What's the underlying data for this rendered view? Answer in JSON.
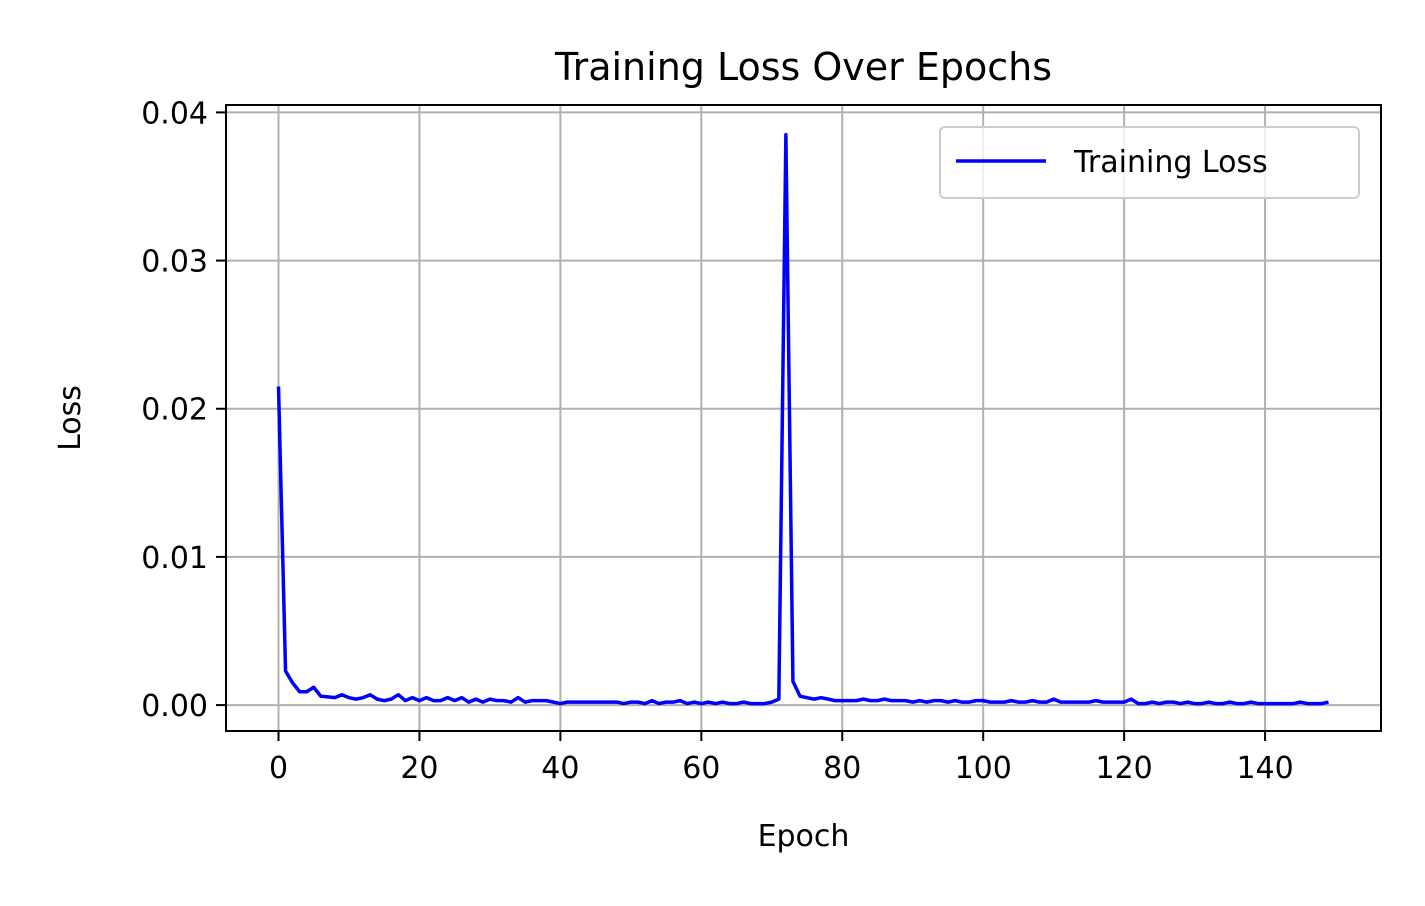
{
  "chart_data": {
    "type": "line",
    "title": "Training Loss Over Epochs",
    "xlabel": "Epoch",
    "ylabel": "Loss",
    "xlim": [
      -7.45,
      156.45
    ],
    "ylim": [
      -0.00175,
      0.0405
    ],
    "xticks": [
      0,
      20,
      40,
      60,
      80,
      100,
      120,
      140
    ],
    "xtick_labels": [
      "0",
      "20",
      "40",
      "60",
      "80",
      "100",
      "120",
      "140"
    ],
    "yticks": [
      0.0,
      0.01,
      0.02,
      0.03,
      0.04
    ],
    "ytick_labels": [
      "0.00",
      "0.01",
      "0.02",
      "0.03",
      "0.04"
    ],
    "grid": true,
    "legend_position": "upper right",
    "series": [
      {
        "name": "Training Loss",
        "color": "#0000ff",
        "x": [
          0,
          1,
          2,
          3,
          4,
          5,
          6,
          7,
          8,
          9,
          10,
          11,
          12,
          13,
          14,
          15,
          16,
          17,
          18,
          19,
          20,
          21,
          22,
          23,
          24,
          25,
          26,
          27,
          28,
          29,
          30,
          31,
          32,
          33,
          34,
          35,
          36,
          37,
          38,
          39,
          40,
          41,
          42,
          43,
          44,
          45,
          46,
          47,
          48,
          49,
          50,
          51,
          52,
          53,
          54,
          55,
          56,
          57,
          58,
          59,
          60,
          61,
          62,
          63,
          64,
          65,
          66,
          67,
          68,
          69,
          70,
          71,
          72,
          73,
          74,
          75,
          76,
          77,
          78,
          79,
          80,
          81,
          82,
          83,
          84,
          85,
          86,
          87,
          88,
          89,
          90,
          91,
          92,
          93,
          94,
          95,
          96,
          97,
          98,
          99,
          100,
          101,
          102,
          103,
          104,
          105,
          106,
          107,
          108,
          109,
          110,
          111,
          112,
          113,
          114,
          115,
          116,
          117,
          118,
          119,
          120,
          121,
          122,
          123,
          124,
          125,
          126,
          127,
          128,
          129,
          130,
          131,
          132,
          133,
          134,
          135,
          136,
          137,
          138,
          139,
          140,
          141,
          142,
          143,
          144,
          145,
          146,
          147,
          148,
          149
        ],
        "values": [
          0.0215,
          0.0023,
          0.0015,
          0.0009,
          0.0009,
          0.0012,
          0.0006,
          0.00055,
          0.0005,
          0.0007,
          0.0005,
          0.0004,
          0.0005,
          0.0007,
          0.0004,
          0.0003,
          0.0004,
          0.0007,
          0.0003,
          0.0005,
          0.0003,
          0.0005,
          0.0003,
          0.0003,
          0.0005,
          0.0003,
          0.0005,
          0.0002,
          0.0004,
          0.0002,
          0.0004,
          0.0003,
          0.0003,
          0.0002,
          0.0005,
          0.0002,
          0.0003,
          0.0003,
          0.0003,
          0.0002,
          0.0001,
          0.0002,
          0.0002,
          0.0002,
          0.0002,
          0.0002,
          0.0002,
          0.0002,
          0.0002,
          0.0001,
          0.0002,
          0.0002,
          0.0001,
          0.0003,
          0.0001,
          0.0002,
          0.0002,
          0.0003,
          0.0001,
          0.0002,
          0.0001,
          0.0002,
          0.0001,
          0.0002,
          0.0001,
          0.0001,
          0.0002,
          0.0001,
          0.0001,
          0.0001,
          0.0002,
          0.0004,
          0.0385,
          0.0016,
          0.0006,
          0.0005,
          0.0004,
          0.0005,
          0.0004,
          0.0003,
          0.0003,
          0.0003,
          0.0003,
          0.0004,
          0.0003,
          0.0003,
          0.0004,
          0.0003,
          0.0003,
          0.0003,
          0.0002,
          0.0003,
          0.0002,
          0.0003,
          0.0003,
          0.0002,
          0.0003,
          0.0002,
          0.0002,
          0.0003,
          0.0003,
          0.0002,
          0.0002,
          0.0002,
          0.0003,
          0.0002,
          0.0002,
          0.0003,
          0.0002,
          0.0002,
          0.0004,
          0.0002,
          0.0002,
          0.0002,
          0.0002,
          0.0002,
          0.0003,
          0.0002,
          0.0002,
          0.0002,
          0.0002,
          0.0004,
          0.0001,
          0.0001,
          0.0002,
          0.0001,
          0.0002,
          0.0002,
          0.0001,
          0.0002,
          0.0001,
          0.0001,
          0.0002,
          0.0001,
          0.0001,
          0.0002,
          0.0001,
          0.0001,
          0.0002,
          0.0001,
          0.0001,
          0.0001,
          0.0001,
          0.0001,
          0.0001,
          0.0002,
          0.0001,
          0.0001,
          0.0001,
          0.0002
        ]
      }
    ]
  }
}
